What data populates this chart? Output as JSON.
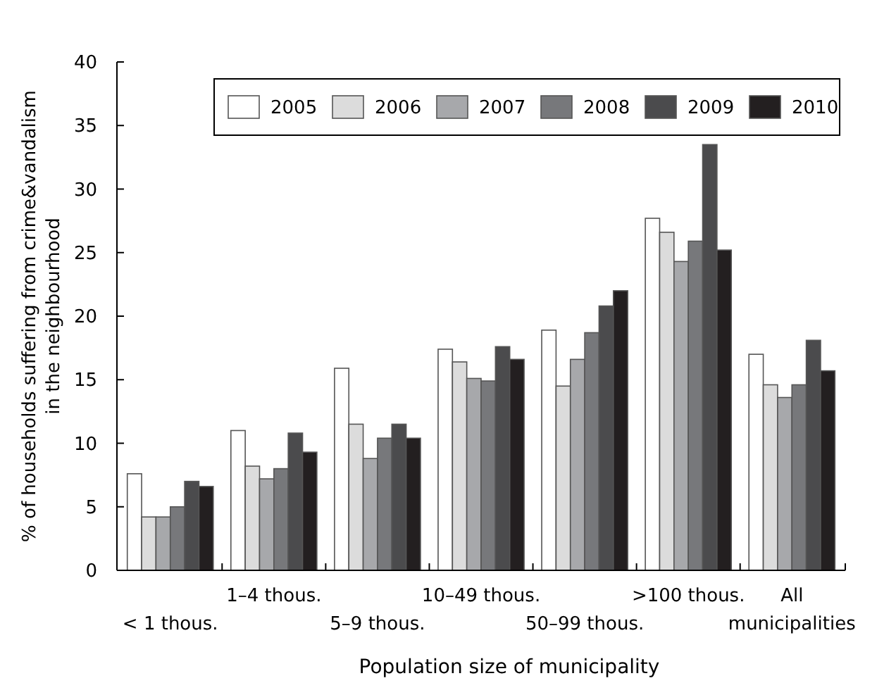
{
  "chart_data": {
    "type": "bar",
    "xlabel": "Population size of municipality",
    "ylabel": "% of households suffering from crime&vandalism in the neighbourhood",
    "categories": [
      "< 1 thous.",
      "1–4 thous.",
      "5–9 thous.",
      "10–49 thous.",
      "50–99 thous.",
      ">100 thous.",
      "All municipalities"
    ],
    "series": [
      {
        "name": "2005",
        "color": "#ffffff",
        "values": [
          7.6,
          11.0,
          15.9,
          17.4,
          18.9,
          27.7,
          17.0
        ]
      },
      {
        "name": "2006",
        "color": "#dcdcdc",
        "values": [
          4.2,
          8.2,
          11.5,
          16.4,
          14.5,
          26.6,
          14.6
        ]
      },
      {
        "name": "2007",
        "color": "#a7a8ab",
        "values": [
          4.2,
          7.2,
          8.8,
          15.1,
          16.6,
          24.3,
          13.6
        ]
      },
      {
        "name": "2008",
        "color": "#77787b",
        "values": [
          5.0,
          8.0,
          10.4,
          14.9,
          18.7,
          25.9,
          14.6
        ]
      },
      {
        "name": "2009",
        "color": "#4b4b4d",
        "values": [
          7.0,
          10.8,
          11.5,
          17.6,
          20.8,
          33.5,
          18.1
        ]
      },
      {
        "name": "2010",
        "color": "#231f20",
        "values": [
          6.6,
          9.3,
          10.4,
          16.6,
          22.0,
          25.2,
          15.7
        ]
      }
    ],
    "ylim": [
      0,
      40
    ],
    "yticks": [
      0,
      5,
      10,
      15,
      20,
      25,
      30,
      35,
      40
    ],
    "grid": false,
    "legend": "top"
  }
}
